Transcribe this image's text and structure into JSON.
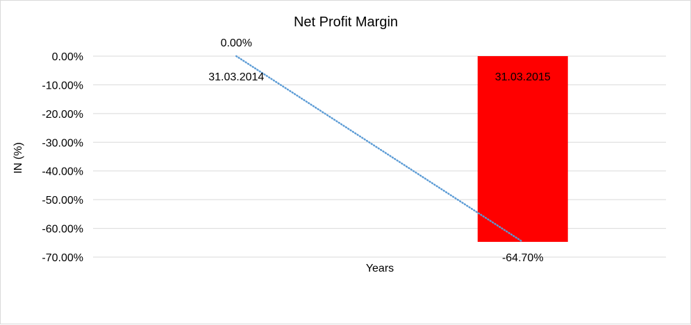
{
  "chart_data": {
    "type": "bar",
    "title": "Net Profit Margin",
    "xlabel": "Years",
    "ylabel": "IN (%)",
    "categories": [
      "31.03.2014",
      "31.03.2015"
    ],
    "series": [
      {
        "values": [
          0.0,
          -64.7
        ],
        "color": "#ff0000"
      }
    ],
    "data_labels": [
      "0.00%",
      "-64.70%"
    ],
    "trendline": {
      "style": "dotted",
      "color": "#5b9bd5",
      "type": "linear"
    },
    "ylim": [
      -70,
      0
    ],
    "yticks": [
      0,
      -10,
      -20,
      -30,
      -40,
      -50,
      -60,
      -70
    ],
    "ytick_labels": [
      "0.00%",
      "-10.00%",
      "-20.00%",
      "-30.00%",
      "-40.00%",
      "-50.00%",
      "-60.00%",
      "-70.00%"
    ],
    "grid": true,
    "legend": "none"
  }
}
